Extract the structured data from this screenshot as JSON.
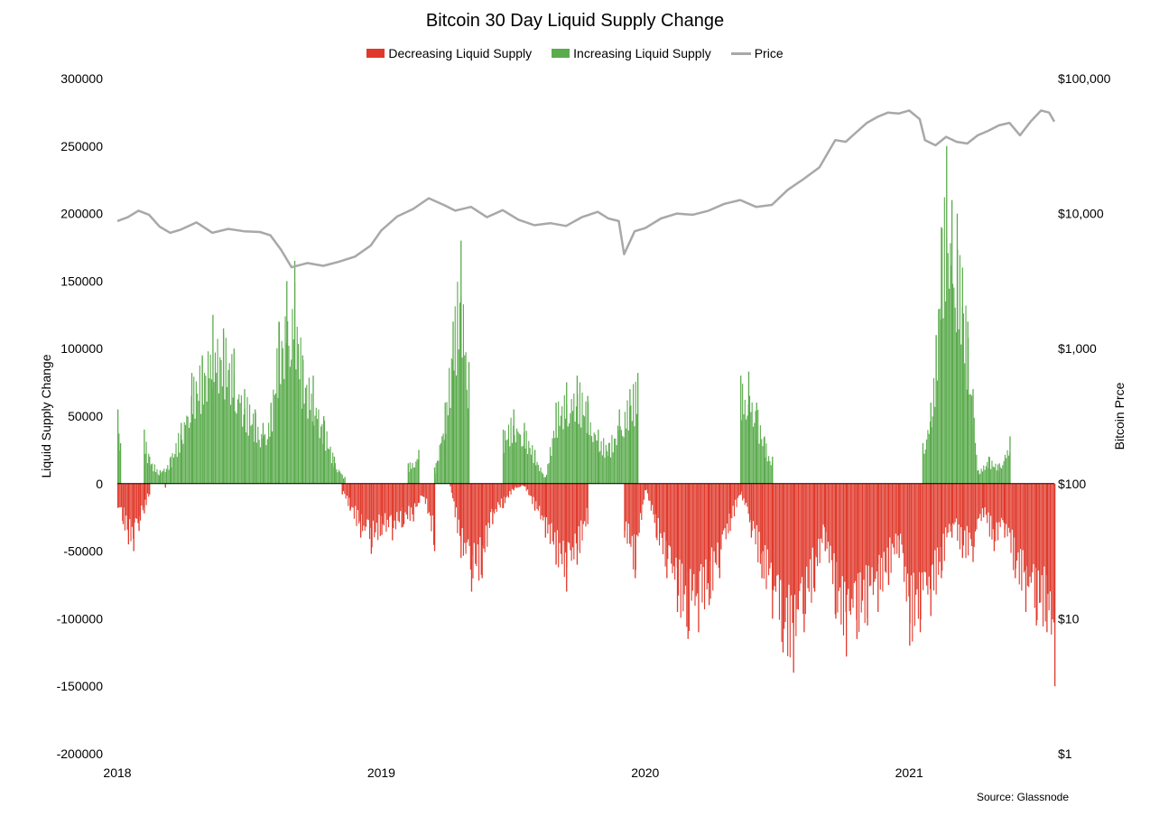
{
  "chart_data": {
    "type": "bar",
    "title": "Bitcoin 30 Day Liquid Supply Change",
    "ylabel": "Liquid Supply Change",
    "ylabel_right": "Bitcoin Prce",
    "ylim": [
      -200000,
      300000
    ],
    "yticks": [
      "300000",
      "250000",
      "200000",
      "150000",
      "100000",
      "50000",
      "0",
      "-50000",
      "-100000",
      "-150000",
      "-200000"
    ],
    "yticks_right": [
      "$100,000",
      "$10,000",
      "$1,000",
      "$100",
      "$10",
      "$1"
    ],
    "y2lim": [
      1,
      100000
    ],
    "y2scale": "log",
    "xticks": [
      "2018",
      "2019",
      "2020",
      "2021"
    ],
    "xlim": [
      2018.0,
      2021.55
    ],
    "legend_position": "top-center",
    "grid": false,
    "source": "Source: Glassnode",
    "colors": {
      "decreasing": "#e0392b",
      "increasing": "#5aab4c",
      "price": "#a8a8a8"
    },
    "series": [
      {
        "name": "Decreasing Liquid Supply",
        "x": [
          2018.0,
          2018.02,
          2018.04,
          2018.06,
          2018.08,
          2018.1,
          2018.12,
          2018.18,
          2018.85,
          2018.88,
          2018.92,
          2018.96,
          2019.0,
          2019.04,
          2019.08,
          2019.12,
          2019.16,
          2019.2,
          2019.26,
          2019.3,
          2019.34,
          2019.38,
          2019.42,
          2019.46,
          2019.5,
          2019.54,
          2019.58,
          2019.62,
          2019.66,
          2019.7,
          2019.74,
          2019.78,
          2019.92,
          2019.96,
          2020.0,
          2020.04,
          2020.08,
          2020.12,
          2020.16,
          2020.2,
          2020.24,
          2020.28,
          2020.32,
          2020.36,
          2020.4,
          2020.44,
          2020.48,
          2020.52,
          2020.56,
          2020.6,
          2020.64,
          2020.68,
          2020.72,
          2020.76,
          2020.8,
          2020.84,
          2020.88,
          2020.92,
          2020.96,
          2021.0,
          2021.04,
          2021.08,
          2021.12,
          2021.16,
          2021.2,
          2021.24,
          2021.28,
          2021.32,
          2021.36,
          2021.4,
          2021.44,
          2021.48,
          2021.52,
          2021.55
        ],
        "values": [
          -18000,
          -30000,
          -45000,
          -50000,
          -35000,
          -22000,
          -8000,
          -3000,
          -8000,
          -20000,
          -40000,
          -52000,
          -38000,
          -42000,
          -32000,
          -28000,
          -10000,
          -50000,
          -2000,
          -55000,
          -80000,
          -70000,
          -30000,
          -18000,
          -5000,
          -2000,
          -20000,
          -40000,
          -60000,
          -80000,
          -60000,
          -30000,
          -40000,
          -70000,
          -5000,
          -40000,
          -70000,
          -95000,
          -115000,
          -110000,
          -90000,
          -70000,
          -35000,
          -8000,
          -40000,
          -70000,
          -100000,
          -125000,
          -140000,
          -110000,
          -80000,
          -50000,
          -100000,
          -128000,
          -115000,
          -105000,
          -95000,
          -75000,
          -55000,
          -120000,
          -110000,
          -98000,
          -70000,
          -40000,
          -55000,
          -58000,
          -25000,
          -50000,
          -40000,
          -70000,
          -95000,
          -105000,
          -110000,
          -150000
        ]
      },
      {
        "name": "Increasing Liquid Supply",
        "x": [
          2018.0,
          2018.01,
          2018.1,
          2018.12,
          2018.16,
          2018.2,
          2018.24,
          2018.28,
          2018.32,
          2018.36,
          2018.4,
          2018.44,
          2018.48,
          2018.52,
          2018.55,
          2018.58,
          2018.61,
          2018.64,
          2018.67,
          2018.7,
          2018.74,
          2018.78,
          2018.82,
          2018.86,
          2019.1,
          2019.14,
          2019.2,
          2019.24,
          2019.27,
          2019.3,
          2019.33,
          2019.46,
          2019.5,
          2019.54,
          2019.58,
          2019.62,
          2019.66,
          2019.7,
          2019.74,
          2019.78,
          2019.82,
          2019.86,
          2019.9,
          2019.94,
          2019.97,
          2020.36,
          2020.39,
          2020.42,
          2020.45,
          2020.48,
          2021.05,
          2021.08,
          2021.1,
          2021.12,
          2021.14,
          2021.16,
          2021.18,
          2021.2,
          2021.22,
          2021.24,
          2021.26,
          2021.3,
          2021.34,
          2021.38
        ],
        "values": [
          55000,
          30000,
          40000,
          20000,
          10000,
          20000,
          45000,
          82000,
          95000,
          125000,
          115000,
          100000,
          70000,
          55000,
          45000,
          60000,
          120000,
          150000,
          165000,
          95000,
          80000,
          50000,
          20000,
          5000,
          15000,
          25000,
          12000,
          60000,
          120000,
          180000,
          90000,
          40000,
          55000,
          45000,
          25000,
          5000,
          60000,
          75000,
          80000,
          65000,
          40000,
          30000,
          55000,
          70000,
          82000,
          80000,
          83000,
          60000,
          35000,
          20000,
          30000,
          60000,
          110000,
          190000,
          250000,
          210000,
          200000,
          160000,
          120000,
          70000,
          10000,
          20000,
          15000,
          35000
        ]
      },
      {
        "name": "Price",
        "x": [
          2018.0,
          2018.04,
          2018.08,
          2018.12,
          2018.16,
          2018.2,
          2018.24,
          2018.3,
          2018.36,
          2018.42,
          2018.48,
          2018.54,
          2018.58,
          2018.62,
          2018.66,
          2018.72,
          2018.78,
          2018.84,
          2018.9,
          2018.96,
          2019.0,
          2019.06,
          2019.12,
          2019.18,
          2019.24,
          2019.28,
          2019.34,
          2019.4,
          2019.46,
          2019.52,
          2019.58,
          2019.64,
          2019.7,
          2019.76,
          2019.82,
          2019.86,
          2019.9,
          2019.92,
          2019.96,
          2020.0,
          2020.06,
          2020.12,
          2020.18,
          2020.24,
          2020.3,
          2020.36,
          2020.42,
          2020.48,
          2020.54,
          2020.6,
          2020.66,
          2020.72,
          2020.76,
          2020.8,
          2020.84,
          2020.88,
          2020.92,
          2020.96,
          2021.0,
          2021.04,
          2021.06,
          2021.1,
          2021.14,
          2021.18,
          2021.22,
          2021.26,
          2021.3,
          2021.34,
          2021.38,
          2021.42,
          2021.46,
          2021.5,
          2021.53,
          2021.55
        ],
        "values": [
          8800,
          9400,
          10500,
          9800,
          8000,
          7200,
          7600,
          8600,
          7200,
          7700,
          7400,
          7300,
          6900,
          5400,
          4000,
          4300,
          4100,
          4400,
          4800,
          5800,
          7500,
          9500,
          10800,
          13000,
          11500,
          10500,
          11200,
          9400,
          10600,
          9000,
          8200,
          8500,
          8100,
          9400,
          10300,
          9200,
          8800,
          5000,
          7400,
          7800,
          9200,
          10000,
          9800,
          10500,
          11800,
          12600,
          11200,
          11600,
          15000,
          18000,
          22000,
          35000,
          34000,
          40000,
          47000,
          52000,
          56000,
          55000,
          58000,
          50000,
          35000,
          32000,
          37000,
          34000,
          33000,
          38000,
          41000,
          45000,
          47000,
          38000,
          48000,
          58000,
          56000,
          48000
        ]
      }
    ]
  },
  "legend": {
    "decreasing": "Decreasing Liquid Supply",
    "increasing": "Increasing Liquid Supply",
    "price": "Price"
  }
}
